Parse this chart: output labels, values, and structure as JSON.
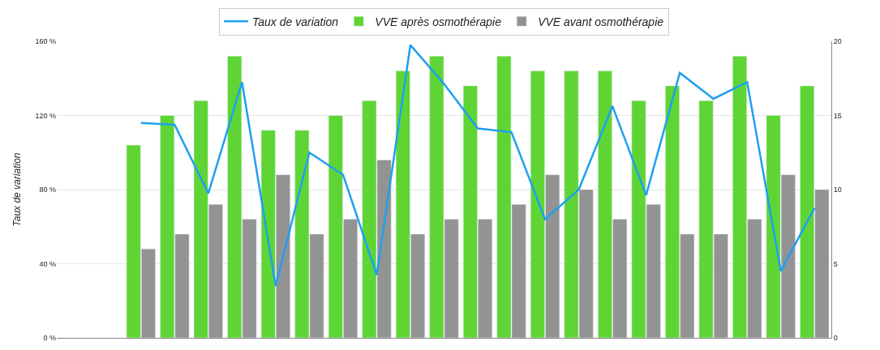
{
  "chart_data": {
    "type": "bar",
    "ylabel": "Taux de variation",
    "categories": [
      null,
      null,
      null,
      null,
      null,
      null,
      null,
      null,
      null,
      null,
      null,
      null,
      null,
      null,
      null,
      null,
      null,
      null,
      null,
      null,
      null,
      null,
      null
    ],
    "series": [
      {
        "name": "Taux de variation",
        "type": "line",
        "axis": "y",
        "color": "#1ea0ef",
        "marker": "none",
        "values": [
          null,
          null,
          116,
          115,
          78,
          138,
          28,
          100,
          88,
          34,
          158,
          137,
          113,
          111,
          64,
          80,
          125,
          77,
          143,
          129,
          138,
          36,
          70
        ]
      },
      {
        "name": "VVE après osmothérapie",
        "axis": "y2",
        "color": "#5fd535",
        "values": [
          null,
          null,
          13,
          15,
          16,
          19,
          14,
          14,
          15,
          16,
          18,
          19,
          17,
          19,
          18,
          18,
          18,
          16,
          17,
          16,
          19,
          15,
          17
        ]
      },
      {
        "name": "VVE avant osmothérapie",
        "axis": "y2",
        "color": "#939393",
        "values": [
          null,
          null,
          6,
          7,
          9,
          8,
          11,
          7,
          8,
          12,
          7,
          8,
          8,
          9,
          11,
          10,
          8,
          9,
          7,
          7,
          8,
          11,
          10
        ]
      }
    ],
    "ylim": [
      0,
      160
    ],
    "yticks": [
      {
        "value": 0,
        "label": "0 %"
      },
      {
        "value": 40,
        "label": "40 %"
      },
      {
        "value": 80,
        "label": "80 %"
      },
      {
        "value": 120,
        "label": "120 %"
      },
      {
        "value": 160,
        "label": "160 %"
      }
    ],
    "y2lim": [
      0,
      20
    ],
    "y2ticks": [
      0,
      5,
      10,
      15,
      20
    ],
    "grid": "y",
    "legend": "top"
  }
}
